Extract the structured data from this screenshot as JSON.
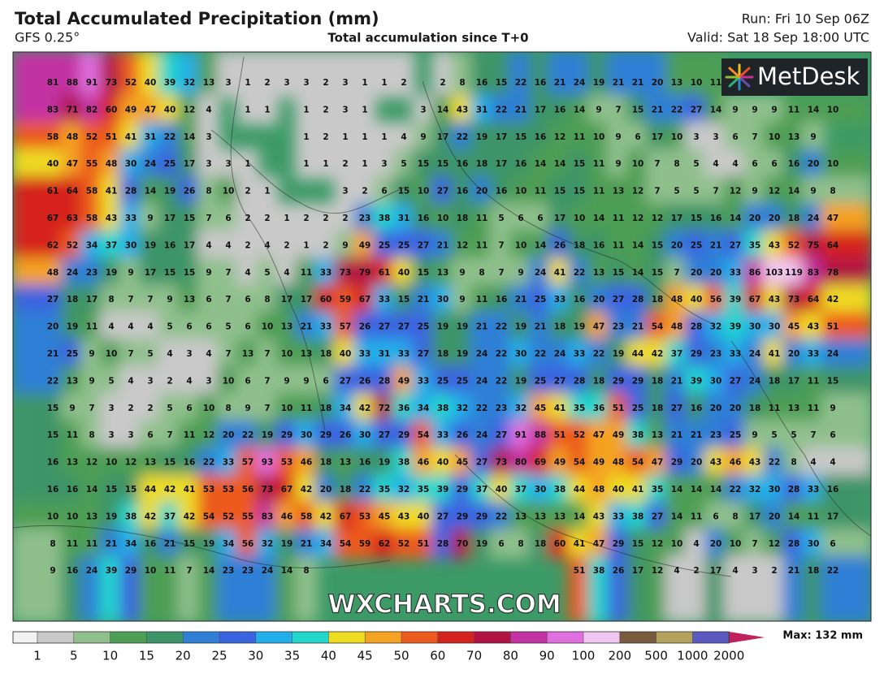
{
  "header": {
    "title": "Total Accumulated Precipitation (mm)",
    "model": "GFS 0.25°",
    "subtitle": "Total accumulation since T+0",
    "run": "Run: Fri 10 Sep 06Z",
    "valid": "Valid: Sat 18 Sep 18:00 UTC"
  },
  "logo": "MetDesk",
  "watermark": "WXCHARTS.COM",
  "grid": {
    "rows": [
      [
        81,
        88,
        91,
        73,
        52,
        40,
        39,
        32,
        13,
        3,
        1,
        2,
        3,
        3,
        2,
        3,
        1,
        1,
        2,
        null,
        2,
        8,
        16,
        15,
        22,
        16,
        21,
        24,
        19,
        21,
        21,
        20,
        13,
        10,
        11,
        null,
        null,
        null,
        null,
        null,
        null
      ],
      [
        83,
        71,
        82,
        60,
        49,
        47,
        40,
        12,
        4,
        null,
        1,
        1,
        null,
        1,
        2,
        3,
        1,
        null,
        null,
        3,
        14,
        43,
        31,
        22,
        21,
        17,
        16,
        14,
        9,
        7,
        15,
        21,
        22,
        27,
        14,
        9,
        9,
        9,
        11,
        14,
        10
      ],
      [
        58,
        48,
        52,
        51,
        41,
        31,
        22,
        14,
        3,
        null,
        null,
        null,
        null,
        1,
        2,
        1,
        1,
        1,
        4,
        9,
        17,
        22,
        19,
        17,
        15,
        16,
        12,
        11,
        10,
        9,
        6,
        17,
        10,
        3,
        3,
        6,
        7,
        10,
        13,
        9,
        null
      ],
      [
        40,
        47,
        55,
        48,
        30,
        24,
        25,
        17,
        3,
        3,
        1,
        null,
        null,
        1,
        1,
        2,
        1,
        3,
        5,
        15,
        15,
        16,
        18,
        17,
        16,
        14,
        14,
        15,
        11,
        9,
        10,
        7,
        8,
        5,
        4,
        4,
        6,
        6,
        16,
        20,
        10
      ],
      [
        61,
        64,
        58,
        41,
        28,
        14,
        19,
        26,
        8,
        10,
        2,
        1,
        null,
        null,
        null,
        3,
        2,
        6,
        15,
        10,
        27,
        16,
        20,
        16,
        10,
        11,
        15,
        15,
        11,
        13,
        12,
        7,
        5,
        5,
        7,
        12,
        9,
        12,
        14,
        9,
        8
      ],
      [
        67,
        63,
        58,
        43,
        33,
        9,
        17,
        15,
        7,
        6,
        2,
        2,
        1,
        2,
        2,
        2,
        23,
        38,
        31,
        16,
        10,
        18,
        11,
        5,
        6,
        6,
        17,
        10,
        14,
        11,
        12,
        12,
        17,
        15,
        16,
        14,
        20,
        20,
        18,
        24,
        47
      ],
      [
        62,
        52,
        34,
        37,
        30,
        19,
        16,
        17,
        4,
        4,
        2,
        4,
        2,
        1,
        2,
        9,
        49,
        25,
        25,
        27,
        21,
        12,
        11,
        7,
        10,
        14,
        26,
        18,
        16,
        11,
        14,
        15,
        20,
        25,
        21,
        27,
        35,
        43,
        52,
        75,
        64
      ],
      [
        48,
        24,
        23,
        19,
        9,
        17,
        15,
        15,
        9,
        7,
        4,
        5,
        4,
        11,
        33,
        73,
        79,
        61,
        40,
        15,
        13,
        9,
        8,
        7,
        9,
        24,
        41,
        22,
        13,
        15,
        14,
        15,
        7,
        20,
        20,
        33,
        86,
        103,
        119,
        83,
        78
      ],
      [
        27,
        18,
        17,
        8,
        7,
        7,
        9,
        13,
        6,
        7,
        6,
        8,
        17,
        17,
        60,
        59,
        67,
        33,
        15,
        21,
        30,
        9,
        11,
        16,
        21,
        25,
        33,
        16,
        20,
        27,
        28,
        18,
        48,
        40,
        56,
        39,
        67,
        43,
        73,
        64,
        42
      ],
      [
        20,
        19,
        11,
        4,
        4,
        4,
        5,
        6,
        6,
        5,
        6,
        10,
        13,
        21,
        33,
        57,
        26,
        27,
        27,
        25,
        19,
        19,
        21,
        22,
        19,
        21,
        18,
        19,
        47,
        23,
        21,
        54,
        48,
        28,
        32,
        39,
        30,
        30,
        45,
        43,
        51
      ],
      [
        21,
        25,
        9,
        10,
        7,
        5,
        4,
        3,
        4,
        7,
        13,
        7,
        10,
        13,
        18,
        40,
        33,
        31,
        33,
        27,
        18,
        19,
        24,
        22,
        30,
        22,
        24,
        33,
        22,
        19,
        44,
        42,
        37,
        29,
        23,
        33,
        24,
        41,
        20,
        33,
        24
      ],
      [
        22,
        13,
        9,
        5,
        4,
        3,
        2,
        4,
        3,
        10,
        6,
        7,
        9,
        9,
        6,
        27,
        26,
        28,
        49,
        33,
        25,
        25,
        24,
        22,
        19,
        25,
        27,
        28,
        18,
        29,
        29,
        18,
        21,
        39,
        30,
        27,
        24,
        18,
        17,
        11,
        15
      ],
      [
        15,
        9,
        7,
        3,
        2,
        2,
        5,
        6,
        10,
        8,
        9,
        7,
        10,
        11,
        18,
        34,
        42,
        72,
        36,
        34,
        38,
        32,
        22,
        23,
        32,
        45,
        41,
        35,
        36,
        51,
        25,
        18,
        27,
        16,
        20,
        20,
        18,
        11,
        13,
        11,
        9
      ],
      [
        15,
        11,
        8,
        3,
        3,
        6,
        7,
        11,
        12,
        20,
        22,
        19,
        29,
        30,
        29,
        26,
        30,
        27,
        29,
        54,
        33,
        26,
        24,
        27,
        91,
        88,
        51,
        52,
        47,
        49,
        38,
        13,
        21,
        21,
        23,
        25,
        9,
        5,
        5,
        7,
        6
      ],
      [
        16,
        13,
        12,
        10,
        12,
        13,
        15,
        16,
        22,
        33,
        57,
        93,
        53,
        46,
        18,
        13,
        16,
        19,
        38,
        46,
        40,
        45,
        27,
        73,
        80,
        69,
        49,
        54,
        49,
        48,
        54,
        47,
        29,
        20,
        43,
        46,
        43,
        22,
        8,
        4,
        4
      ],
      [
        16,
        16,
        14,
        15,
        15,
        44,
        42,
        41,
        53,
        53,
        56,
        73,
        67,
        42,
        20,
        18,
        22,
        35,
        32,
        35,
        39,
        29,
        37,
        40,
        37,
        30,
        38,
        44,
        48,
        40,
        41,
        35,
        14,
        14,
        14,
        22,
        32,
        30,
        28,
        33,
        16
      ],
      [
        10,
        10,
        13,
        19,
        38,
        42,
        37,
        42,
        54,
        52,
        55,
        83,
        46,
        58,
        42,
        67,
        53,
        45,
        43,
        40,
        27,
        29,
        29,
        22,
        13,
        13,
        13,
        14,
        43,
        33,
        38,
        27,
        14,
        11,
        6,
        8,
        17,
        20,
        14,
        11,
        17
      ],
      [
        8,
        11,
        11,
        21,
        34,
        16,
        21,
        15,
        19,
        34,
        56,
        32,
        19,
        21,
        34,
        54,
        59,
        62,
        52,
        51,
        28,
        70,
        19,
        6,
        8,
        18,
        60,
        41,
        47,
        29,
        15,
        12,
        10,
        4,
        20,
        10,
        7,
        12,
        28,
        30,
        6
      ],
      [
        9,
        16,
        24,
        39,
        29,
        10,
        11,
        7,
        14,
        23,
        23,
        24,
        14,
        8,
        null,
        null,
        null,
        null,
        null,
        null,
        null,
        null,
        null,
        null,
        null,
        null,
        null,
        51,
        38,
        26,
        17,
        12,
        4,
        2,
        17,
        4,
        3,
        2,
        21,
        18,
        22
      ]
    ]
  },
  "legend": {
    "levels": [
      1,
      5,
      10,
      15,
      20,
      25,
      30,
      35,
      40,
      45,
      50,
      60,
      70,
      80,
      90,
      100,
      200,
      500,
      1000,
      2000
    ],
    "colors": [
      "#c9c9c9",
      "#8fc08c",
      "#4e9e55",
      "#3c9468",
      "#2f7fd6",
      "#3a64e0",
      "#22aee8",
      "#22d6cc",
      "#eedc22",
      "#f4a222",
      "#ec5a1e",
      "#d6221e",
      "#b01244",
      "#c232a2",
      "#e070e0",
      "#f2c6f2",
      "#7a5a3c",
      "#b4a25c",
      "#5a5ac0",
      "#c0205c"
    ],
    "below_color": "#f2f2f2",
    "max_label": "Max: 132 mm"
  }
}
